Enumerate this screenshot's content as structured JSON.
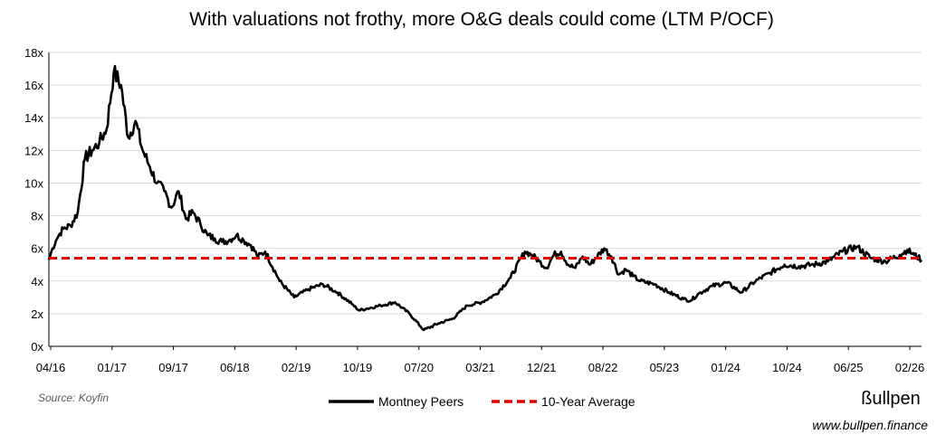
{
  "chart_data": {
    "type": "line",
    "title": "With valuations not frothy, more O&G deals could come (LTM P/OCF)",
    "ylim": [
      0,
      18
    ],
    "y_ticks": [
      "0x",
      "2x",
      "4x",
      "6x",
      "8x",
      "10x",
      "12x",
      "14x",
      "16x",
      "18x"
    ],
    "x_ticks": [
      "04/16",
      "01/17",
      "09/17",
      "06/18",
      "02/19",
      "10/19",
      "07/20",
      "03/21",
      "12/21",
      "08/22",
      "05/23",
      "01/24",
      "10/24",
      "06/25",
      "02/26"
    ],
    "x_range_months": [
      0,
      121
    ],
    "series": [
      {
        "name": "Montney Peers",
        "color": "#000000",
        "style": "solid",
        "x_months": [
          0,
          0.5,
          1,
          1.5,
          2,
          3,
          4,
          5,
          6,
          7,
          8,
          9,
          10,
          11,
          12,
          13,
          14,
          15,
          16,
          17,
          18,
          19,
          20,
          21,
          22,
          23,
          24,
          25,
          26,
          27,
          28,
          29,
          30,
          32,
          34,
          36,
          38,
          40,
          42,
          43,
          44,
          46,
          48,
          50,
          52,
          54,
          56,
          58,
          60,
          62,
          64,
          66,
          67,
          68,
          69,
          70,
          71,
          72,
          73,
          74,
          75,
          77,
          78,
          79,
          80,
          81,
          82,
          84,
          86,
          88,
          89,
          90,
          92,
          94,
          96,
          98,
          100,
          102,
          104,
          106,
          108,
          110,
          112,
          114,
          116,
          118,
          119,
          120,
          121
        ],
        "values": [
          5.3,
          6.0,
          6.5,
          6.9,
          7.2,
          7.4,
          8.2,
          11.5,
          12.0,
          12.5,
          13.3,
          16.8,
          16.0,
          12.8,
          13.8,
          12.0,
          11.0,
          10.0,
          9.5,
          8.5,
          9.5,
          7.8,
          8.2,
          7.5,
          6.8,
          6.6,
          6.4,
          6.5,
          6.8,
          6.5,
          6.2,
          5.5,
          5.8,
          4.0,
          3.0,
          3.5,
          3.8,
          3.3,
          2.6,
          2.2,
          2.3,
          2.5,
          2.7,
          2.0,
          1.0,
          1.4,
          1.7,
          2.5,
          2.7,
          3.2,
          4.2,
          5.8,
          5.6,
          5.2,
          4.8,
          5.6,
          5.8,
          5.0,
          4.8,
          5.5,
          5.0,
          6.0,
          5.5,
          4.4,
          4.7,
          4.3,
          4.0,
          3.8,
          3.3,
          2.9,
          2.8,
          3.2,
          3.7,
          3.9,
          3.3,
          4.0,
          4.5,
          5.0,
          4.9,
          5.0,
          5.2,
          5.8,
          6.1,
          5.4,
          5.2,
          5.6,
          5.9,
          5.6,
          5.3
        ]
      },
      {
        "name": "10-Year Average",
        "color": "#e00000",
        "style": "dashed",
        "value": 5.4
      }
    ],
    "legend": "bottom-center"
  },
  "footer": {
    "source": "Source: Koyfin",
    "brand": "ßullpen",
    "url": "www.bullpen.finance"
  }
}
